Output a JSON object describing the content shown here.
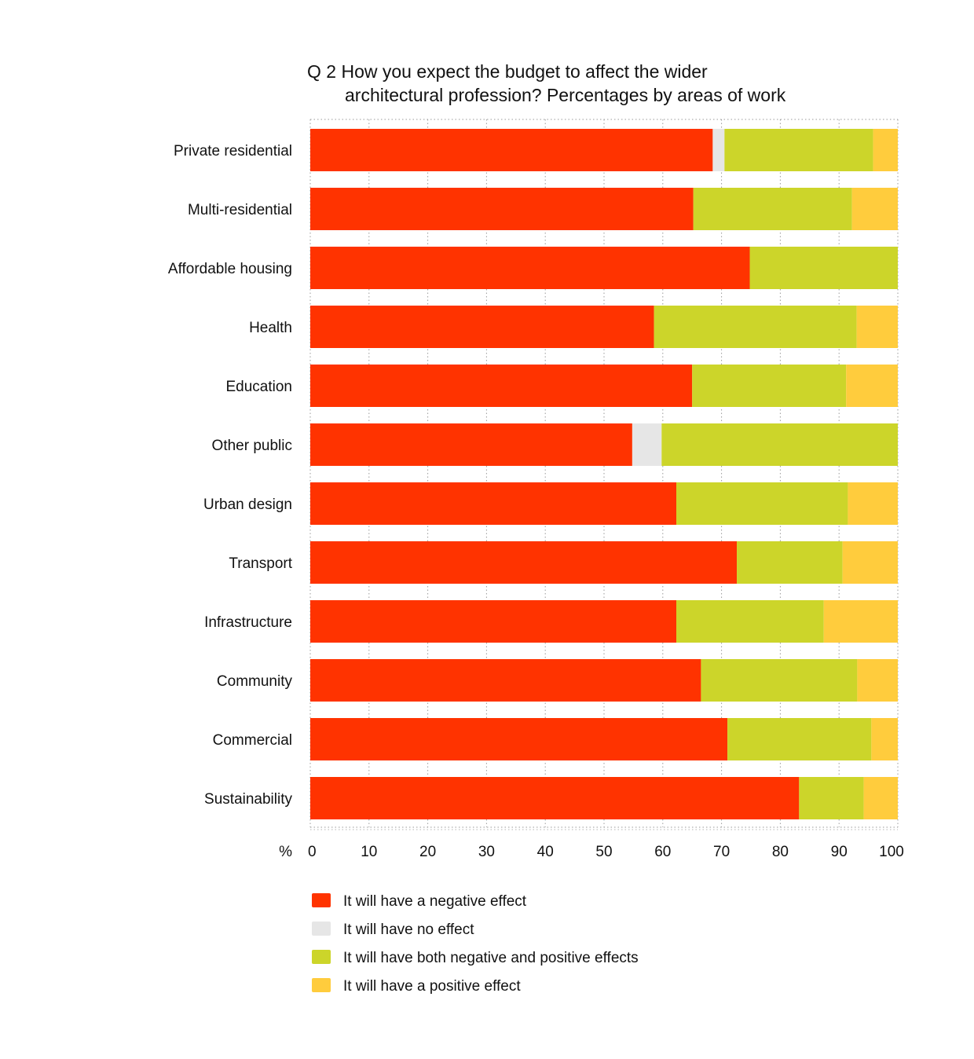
{
  "chart_data": {
    "type": "bar",
    "orientation": "horizontal",
    "stacked": true,
    "title_lines": [
      "Q 2 How you expect the budget to affect the wider",
      "architectural profession? Percentages by areas of work"
    ],
    "xlabel": "%",
    "ylabel": "",
    "xlim": [
      0,
      100
    ],
    "x_ticks": [
      "0",
      "10",
      "20",
      "30",
      "40",
      "50",
      "60",
      "70",
      "80",
      "90",
      "100"
    ],
    "grid": true,
    "legend_position": "bottom",
    "categories": [
      "Private residential",
      "Multi-residential",
      "Affordable housing",
      "Health",
      "Education",
      "Other public",
      "Urban design",
      "Transport",
      "Infrastructure",
      "Community",
      "Commercial",
      "Sustainability"
    ],
    "series": [
      {
        "name": "It will have a negative effect",
        "color": "#ff3300",
        "values": [
          68.5,
          65.2,
          74.8,
          58.5,
          65.0,
          54.8,
          62.3,
          72.6,
          62.3,
          66.5,
          71.0,
          83.2
        ]
      },
      {
        "name": "It will have no effect",
        "color": "#e6e6e6",
        "values": [
          2.0,
          0,
          0,
          0,
          0,
          5.0,
          0,
          0,
          0,
          0,
          0,
          0
        ]
      },
      {
        "name": "It will have both negative and positive effects",
        "color": "#ccd52a",
        "values": [
          25.3,
          27.0,
          25.2,
          34.5,
          26.2,
          40.2,
          29.2,
          18.0,
          25.1,
          26.6,
          24.5,
          11.0
        ]
      },
      {
        "name": "It will have a positive effect",
        "color": "#ffcc3d",
        "values": [
          4.2,
          7.8,
          0,
          7.0,
          8.8,
          0,
          8.5,
          9.4,
          12.6,
          6.9,
          4.5,
          5.8
        ]
      }
    ]
  }
}
